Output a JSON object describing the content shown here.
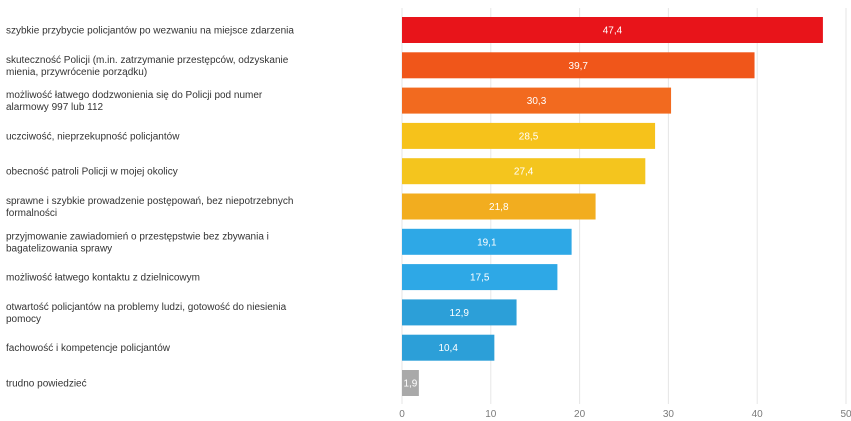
{
  "chart_data": {
    "type": "bar",
    "orientation": "horizontal",
    "title": "",
    "xlabel": "",
    "ylabel": "",
    "xlim": [
      0,
      50
    ],
    "x_ticks": [
      "0",
      "10",
      "20",
      "30",
      "40",
      "50"
    ],
    "grid": true,
    "categories": [
      "szybkie przybycie policjantów po wezwaniu na miejsce zdarzenia",
      "skuteczność Policji (m.in. zatrzymanie przestępców, odzyskanie mienia, przywrócenie porządku)",
      "możliwość łatwego dodzwonienia się do Policji pod numer alarmowy 997 lub 112",
      "uczciwość, nieprzekupność policjantów",
      "obecność patroli Policji w mojej okolicy",
      "sprawne i szybkie prowadzenie postępowań, bez niepotrzebnych formalności",
      "przyjmowanie zawiadomień o przestępstwie bez zbywania i bagatelizowania sprawy",
      "możliwość łatwego kontaktu z dzielnicowym",
      "otwartość policjantów na problemy ludzi, gotowość do niesienia pomocy",
      "fachowość i kompetencje policjantów",
      "trudno powiedzieć"
    ],
    "values": [
      47.4,
      39.7,
      30.3,
      28.5,
      27.4,
      21.8,
      19.1,
      17.5,
      12.9,
      10.4,
      1.9
    ],
    "value_labels": [
      "47,4",
      "39,7",
      "30,3",
      "28,5",
      "27,4",
      "21,8",
      "19,1",
      "17,5",
      "12,9",
      "10,4",
      "1,9"
    ],
    "colors": [
      "#e8141a",
      "#f0561a",
      "#f26a1f",
      "#f6c21b",
      "#f4c51e",
      "#f2ad1f",
      "#2ea8e6",
      "#2ea8e6",
      "#2c9fd8",
      "#2c9fd8",
      "#a9a9a9"
    ]
  }
}
